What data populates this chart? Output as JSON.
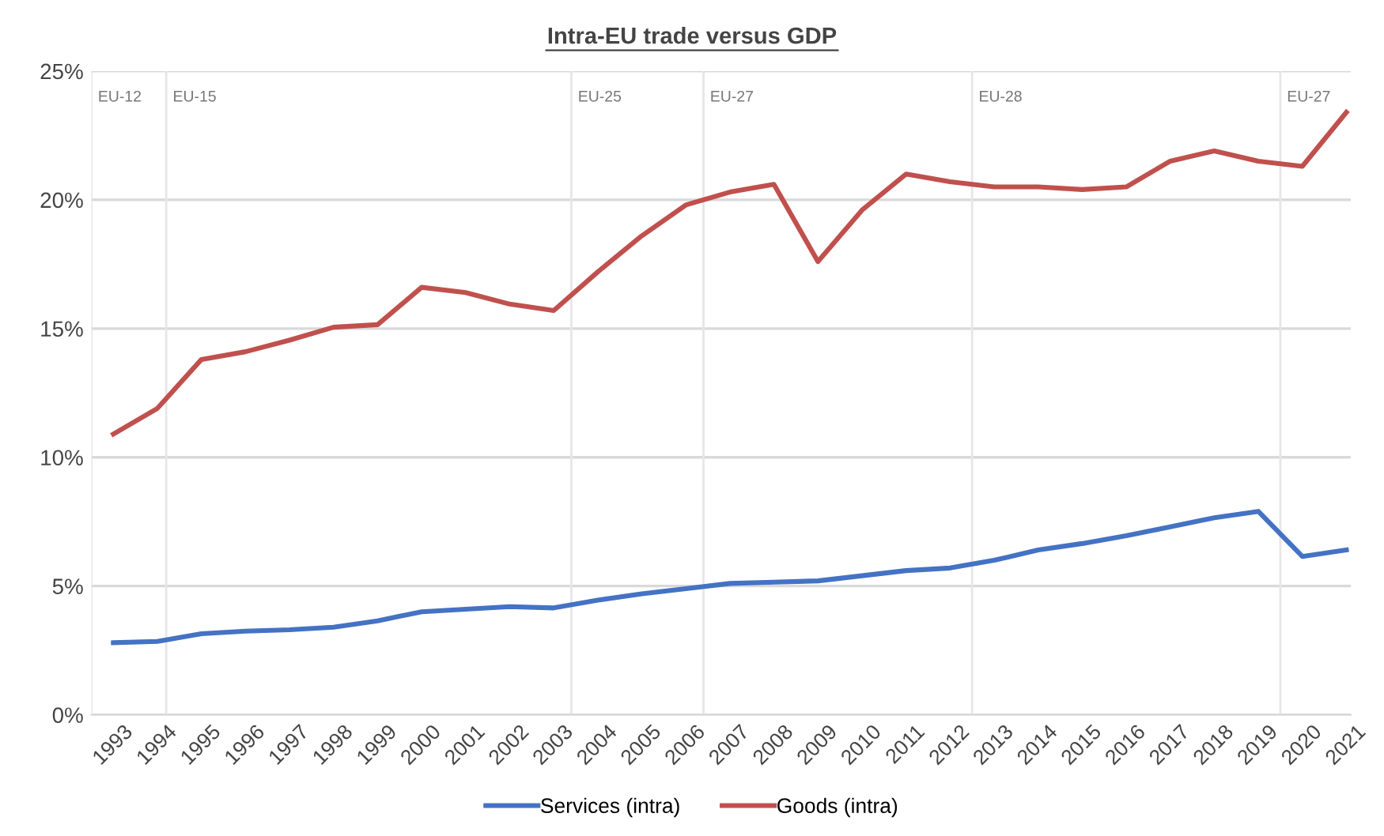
{
  "chart_data": {
    "type": "line",
    "title": "Intra-EU trade versus GDP",
    "x": [
      1993,
      1994,
      1995,
      1996,
      1997,
      1998,
      1999,
      2000,
      2001,
      2002,
      2003,
      2004,
      2005,
      2006,
      2007,
      2008,
      2009,
      2010,
      2011,
      2012,
      2013,
      2014,
      2015,
      2016,
      2017,
      2018,
      2019,
      2020,
      2021
    ],
    "series": [
      {
        "name": "Services (intra)",
        "color": "#4472c4",
        "values": [
          2.8,
          2.85,
          3.15,
          3.25,
          3.3,
          3.4,
          3.65,
          4.0,
          4.1,
          4.2,
          4.15,
          4.45,
          4.7,
          4.9,
          5.1,
          5.15,
          5.2,
          5.4,
          5.6,
          5.7,
          6.0,
          6.4,
          6.65,
          6.95,
          7.3,
          7.65,
          7.9,
          6.15,
          6.4
        ]
      },
      {
        "name": "Goods (intra)",
        "color": "#c0504d",
        "values": [
          10.9,
          11.9,
          13.8,
          14.1,
          14.55,
          15.05,
          15.15,
          16.6,
          16.4,
          15.95,
          15.7,
          17.2,
          18.6,
          19.8,
          20.3,
          20.6,
          17.6,
          19.6,
          21.0,
          20.7,
          20.5,
          20.5,
          20.4,
          20.5,
          21.5,
          21.9,
          21.5,
          21.3,
          23.4
        ]
      }
    ],
    "xlim": [
      1992.5,
      2021.1
    ],
    "xticks": [
      1993,
      1994,
      1995,
      1996,
      1997,
      1998,
      1999,
      2000,
      2001,
      2002,
      2003,
      2004,
      2005,
      2006,
      2007,
      2008,
      2009,
      2010,
      2011,
      2012,
      2013,
      2014,
      2015,
      2016,
      2017,
      2018,
      2019,
      2020,
      2021
    ],
    "ylim": [
      0,
      25
    ],
    "yticks": [
      {
        "value": 0,
        "label": "0%"
      },
      {
        "value": 5,
        "label": "5%"
      },
      {
        "value": 10,
        "label": "10%"
      },
      {
        "value": 15,
        "label": "15%"
      },
      {
        "value": 20,
        "label": "20%"
      },
      {
        "value": 25,
        "label": "25%"
      }
    ],
    "ref_lines": [
      {
        "axis": "x",
        "value": 1992.5,
        "label": "EU-12",
        "color": "#e6e6e6"
      },
      {
        "axis": "x",
        "value": 1994.2,
        "label": "EU-15",
        "color": "#e6e6e6"
      },
      {
        "axis": "x",
        "value": 2003.4,
        "label": "EU-25",
        "color": "#e6e6e6"
      },
      {
        "axis": "x",
        "value": 2006.4,
        "label": "EU-27",
        "color": "#e6e6e6"
      },
      {
        "axis": "x",
        "value": 2012.5,
        "label": "EU-28",
        "color": "#e6e6e6"
      },
      {
        "axis": "x",
        "value": 2019.5,
        "label": "EU-27",
        "color": "#e6e6e6"
      }
    ],
    "grid": "y",
    "legend": "bottom",
    "marker": "none",
    "line_style": "solid"
  }
}
